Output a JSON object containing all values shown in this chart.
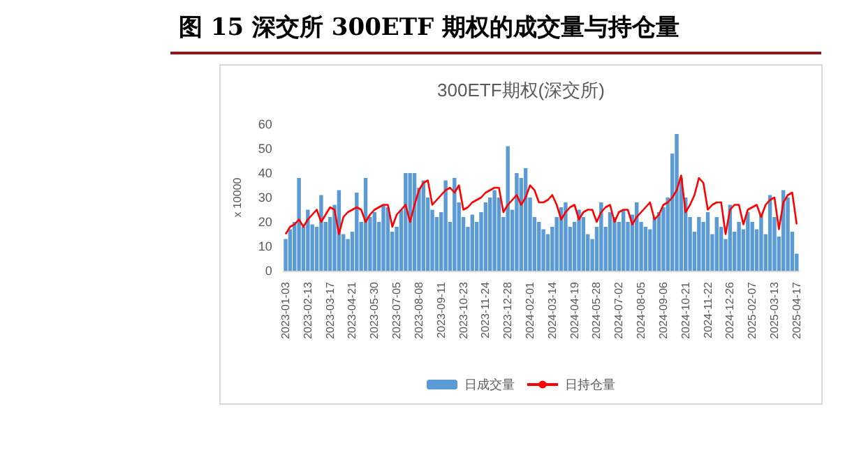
{
  "chart_data": {
    "type": "bar",
    "title": "图 15 深交所 300ETF 期权的成交量与持仓量",
    "subtitle": "300ETF期权(深交所)",
    "ylabel": "x 10000",
    "categories": [
      "2023-01-03",
      null,
      null,
      null,
      null,
      "2023-02-13",
      null,
      null,
      null,
      null,
      "2023-03-17",
      null,
      null,
      null,
      null,
      "2023-04-21",
      null,
      null,
      null,
      null,
      "2023-05-30",
      null,
      null,
      null,
      null,
      "2023-07-05",
      null,
      null,
      null,
      null,
      "2023-08-08",
      null,
      null,
      null,
      null,
      "2023-09-11",
      null,
      null,
      null,
      null,
      "2023-10-23",
      null,
      null,
      null,
      null,
      "2023-11-24",
      null,
      null,
      null,
      null,
      "2023-12-28",
      null,
      null,
      null,
      null,
      "2024-02-01",
      null,
      null,
      null,
      null,
      "2024-03-14",
      null,
      null,
      null,
      null,
      "2024-04-19",
      null,
      null,
      null,
      null,
      "2024-05-28",
      null,
      null,
      null,
      null,
      "2024-07-02",
      null,
      null,
      null,
      null,
      "2024-08-05",
      null,
      null,
      null,
      null,
      "2024-09-06",
      null,
      null,
      null,
      null,
      "2024-10-21",
      null,
      null,
      null,
      null,
      "2024-11-22",
      null,
      null,
      null,
      null,
      "2024-12-26",
      null,
      null,
      null,
      null,
      "2025-02-07",
      null,
      null,
      null,
      null,
      "2025-03-13",
      null,
      null,
      null,
      null,
      "2025-04-17"
    ],
    "series": [
      {
        "name": "日成交量",
        "color": "#5b9bd5",
        "values": [
          13,
          17,
          20,
          38,
          18,
          25,
          19,
          18,
          31,
          20,
          22,
          27,
          33,
          15,
          13,
          16,
          32,
          20,
          38,
          22,
          24,
          20,
          27,
          26,
          16,
          18,
          25,
          40,
          40,
          40,
          34,
          37,
          30,
          25,
          22,
          24,
          37,
          20,
          38,
          28,
          22,
          18,
          23,
          20,
          24,
          28,
          30,
          33,
          30,
          22,
          51,
          25,
          40,
          38,
          42,
          30,
          22,
          20,
          17,
          15,
          18,
          22,
          26,
          28,
          18,
          20,
          25,
          22,
          15,
          13,
          18,
          28,
          18,
          24,
          22,
          20,
          25,
          20,
          23,
          28,
          20,
          18,
          17,
          22,
          24,
          26,
          30,
          48,
          56,
          38,
          30,
          22,
          16,
          22,
          20,
          24,
          15,
          22,
          18,
          13,
          27,
          16,
          20,
          17,
          24,
          20,
          17,
          23,
          15,
          31,
          22,
          14,
          33,
          30,
          16,
          7
        ]
      },
      {
        "name": "日持仓量",
        "type": "line",
        "color": "#ff0000",
        "values": [
          15,
          18,
          19,
          21,
          18,
          21,
          23,
          25,
          20,
          23,
          26,
          25,
          15,
          22,
          24,
          25,
          26,
          25,
          20,
          23,
          25,
          26,
          27,
          27,
          18,
          23,
          25,
          27,
          20,
          27,
          33,
          36,
          37,
          27,
          29,
          31,
          33,
          34,
          32,
          35,
          25,
          26,
          28,
          29,
          30,
          32,
          33,
          34,
          34,
          24,
          27,
          29,
          31,
          27,
          30,
          35,
          33,
          28,
          28,
          29,
          31,
          27,
          21,
          24,
          26,
          27,
          21,
          24,
          25,
          25,
          20,
          24,
          26,
          27,
          20,
          24,
          25,
          25,
          19,
          22,
          24,
          26,
          28,
          21,
          23,
          27,
          28,
          30,
          33,
          39,
          24,
          27,
          31,
          38,
          36,
          25,
          27,
          28,
          28,
          15,
          25,
          27,
          27,
          19,
          25,
          26,
          27,
          22,
          27,
          29,
          30,
          17,
          28,
          31,
          32,
          19
        ]
      }
    ],
    "ylim": [
      0,
      60
    ],
    "yticks": [
      0,
      10,
      20,
      30,
      40,
      50,
      60
    ],
    "grid": false,
    "legend": "bottom",
    "marker": "none",
    "line_style": "solid"
  }
}
